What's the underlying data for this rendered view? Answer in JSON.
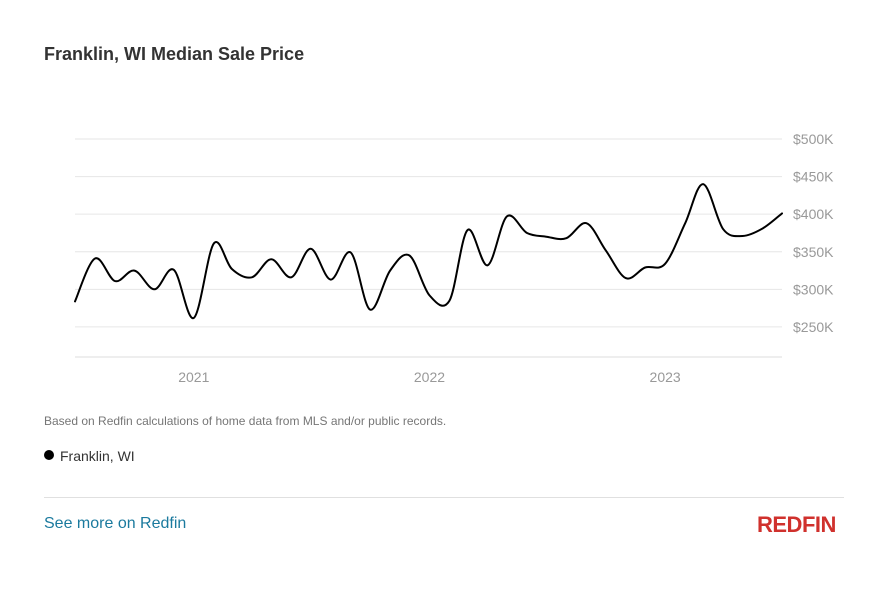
{
  "header": {
    "title": "Franklin, WI Median Sale Price"
  },
  "chart_data": {
    "type": "line",
    "title": "Franklin, WI Median Sale Price",
    "ylim": [
      210000,
      500000
    ],
    "yticks": [
      {
        "value": 250000,
        "label": "$250K"
      },
      {
        "value": 300000,
        "label": "$300K"
      },
      {
        "value": 350000,
        "label": "$350K"
      },
      {
        "value": 400000,
        "label": "$400K"
      },
      {
        "value": 450000,
        "label": "$450K"
      },
      {
        "value": 500000,
        "label": "$500K"
      }
    ],
    "xlim": [
      "2020-07-01",
      "2023-07-01"
    ],
    "xticks": [
      {
        "value": "2021-01-01",
        "label": "2021"
      },
      {
        "value": "2022-01-01",
        "label": "2022"
      },
      {
        "value": "2023-01-01",
        "label": "2023"
      }
    ],
    "grid": true,
    "series": [
      {
        "name": "Franklin, WI",
        "color": "#000000",
        "x": [
          "2020-07-01",
          "2020-08-01",
          "2020-09-01",
          "2020-10-01",
          "2020-11-01",
          "2020-12-01",
          "2021-01-01",
          "2021-02-01",
          "2021-03-01",
          "2021-04-01",
          "2021-05-01",
          "2021-06-01",
          "2021-07-01",
          "2021-08-01",
          "2021-09-01",
          "2021-10-01",
          "2021-11-01",
          "2021-12-01",
          "2022-01-01",
          "2022-02-01",
          "2022-03-01",
          "2022-04-01",
          "2022-05-01",
          "2022-06-01",
          "2022-07-01",
          "2022-08-01",
          "2022-09-01",
          "2022-10-01",
          "2022-11-01",
          "2022-12-01",
          "2023-01-01",
          "2023-02-01",
          "2023-03-01",
          "2023-04-01",
          "2023-05-01",
          "2023-06-01",
          "2023-07-01"
        ],
        "values": [
          284000,
          341000,
          311000,
          325000,
          300000,
          326000,
          262000,
          361000,
          327000,
          316000,
          340000,
          316000,
          354000,
          313000,
          349000,
          273000,
          325000,
          345000,
          292000,
          285000,
          379000,
          332000,
          397000,
          375000,
          370000,
          368000,
          388000,
          352000,
          315000,
          329000,
          334000,
          388000,
          440000,
          380000,
          371000,
          381000,
          401000
        ]
      }
    ]
  },
  "footnote": "Based on Redfin calculations of home data from MLS and/or public records.",
  "legend": {
    "label": "Franklin, WI"
  },
  "footer": {
    "link_text": "See more on Redfin",
    "logo_text": "REDFIN",
    "logo_color": "#d0312d"
  }
}
